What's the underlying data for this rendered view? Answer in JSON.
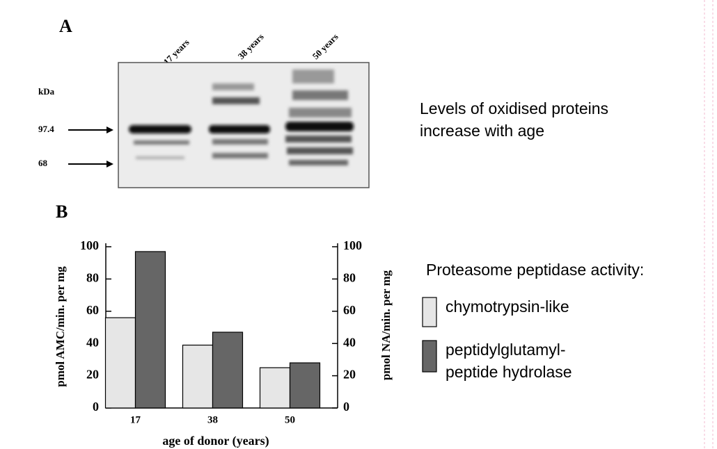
{
  "panel_a": {
    "label": "A",
    "lanes": [
      "17 years",
      "38 years",
      "50 years"
    ],
    "unit": "kDa",
    "markers": [
      "97.4",
      "68"
    ],
    "caption": "Levels of oxidised proteins\nincrease with age"
  },
  "chart_data": {
    "type": "bar",
    "panel_label": "B",
    "x_label": "age of donor (years)",
    "y_label": "pmol AMC/min.  per mg",
    "y2_label": "pmol NA/min. per mg",
    "legend_title": "Proteasome  peptidase activity:",
    "categories": [
      "17",
      "38",
      "50"
    ],
    "series": [
      {
        "name": "chymotrypsin-like",
        "color": "#e6e6e6",
        "values": [
          56,
          39,
          25
        ]
      },
      {
        "name": "peptidylglutamyl-\npeptide hydrolase",
        "color": "#666666",
        "values": [
          97,
          47,
          28
        ],
        "axis": "y2"
      }
    ],
    "ylim": [
      0,
      100
    ],
    "yticks": [
      0,
      20,
      40,
      60,
      80,
      100
    ],
    "y2lim": [
      0,
      100
    ],
    "y2ticks": [
      0,
      20,
      40,
      60,
      80,
      100
    ]
  }
}
